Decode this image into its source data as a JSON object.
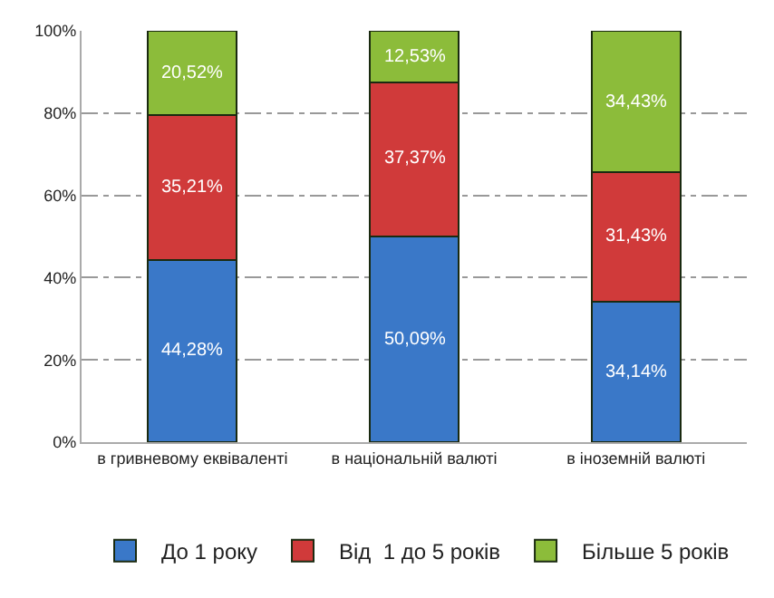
{
  "chart_data": {
    "type": "bar",
    "stacked": true,
    "categories": [
      "в гривневому еквіваленті",
      "в національній валюті",
      "в іноземній валюті"
    ],
    "series": [
      {
        "name": "До 1 року",
        "color": "#3a78c8",
        "values": [
          44.28,
          50.09,
          34.14
        ],
        "value_labels": [
          "44,28%",
          "50,09%",
          "34,14%"
        ]
      },
      {
        "name": "Від  1 до 5 років",
        "color": "#d03a3a",
        "values": [
          35.21,
          37.37,
          31.43
        ],
        "value_labels": [
          "35,21%",
          "37,37%",
          "31,43%"
        ]
      },
      {
        "name": "Більше 5 років",
        "color": "#8cbc3a",
        "values": [
          20.52,
          12.53,
          34.43
        ],
        "value_labels": [
          "20,52%",
          "12,53%",
          "34,43%"
        ]
      }
    ],
    "ylim": [
      0,
      100
    ],
    "yticks": [
      {
        "value": 0,
        "label": "0%"
      },
      {
        "value": 20,
        "label": "20%"
      },
      {
        "value": 40,
        "label": "40%"
      },
      {
        "value": 60,
        "label": "60%"
      },
      {
        "value": 80,
        "label": "80%"
      },
      {
        "value": 100,
        "label": "100%"
      }
    ],
    "grid": "y",
    "legend": "bottom"
  }
}
